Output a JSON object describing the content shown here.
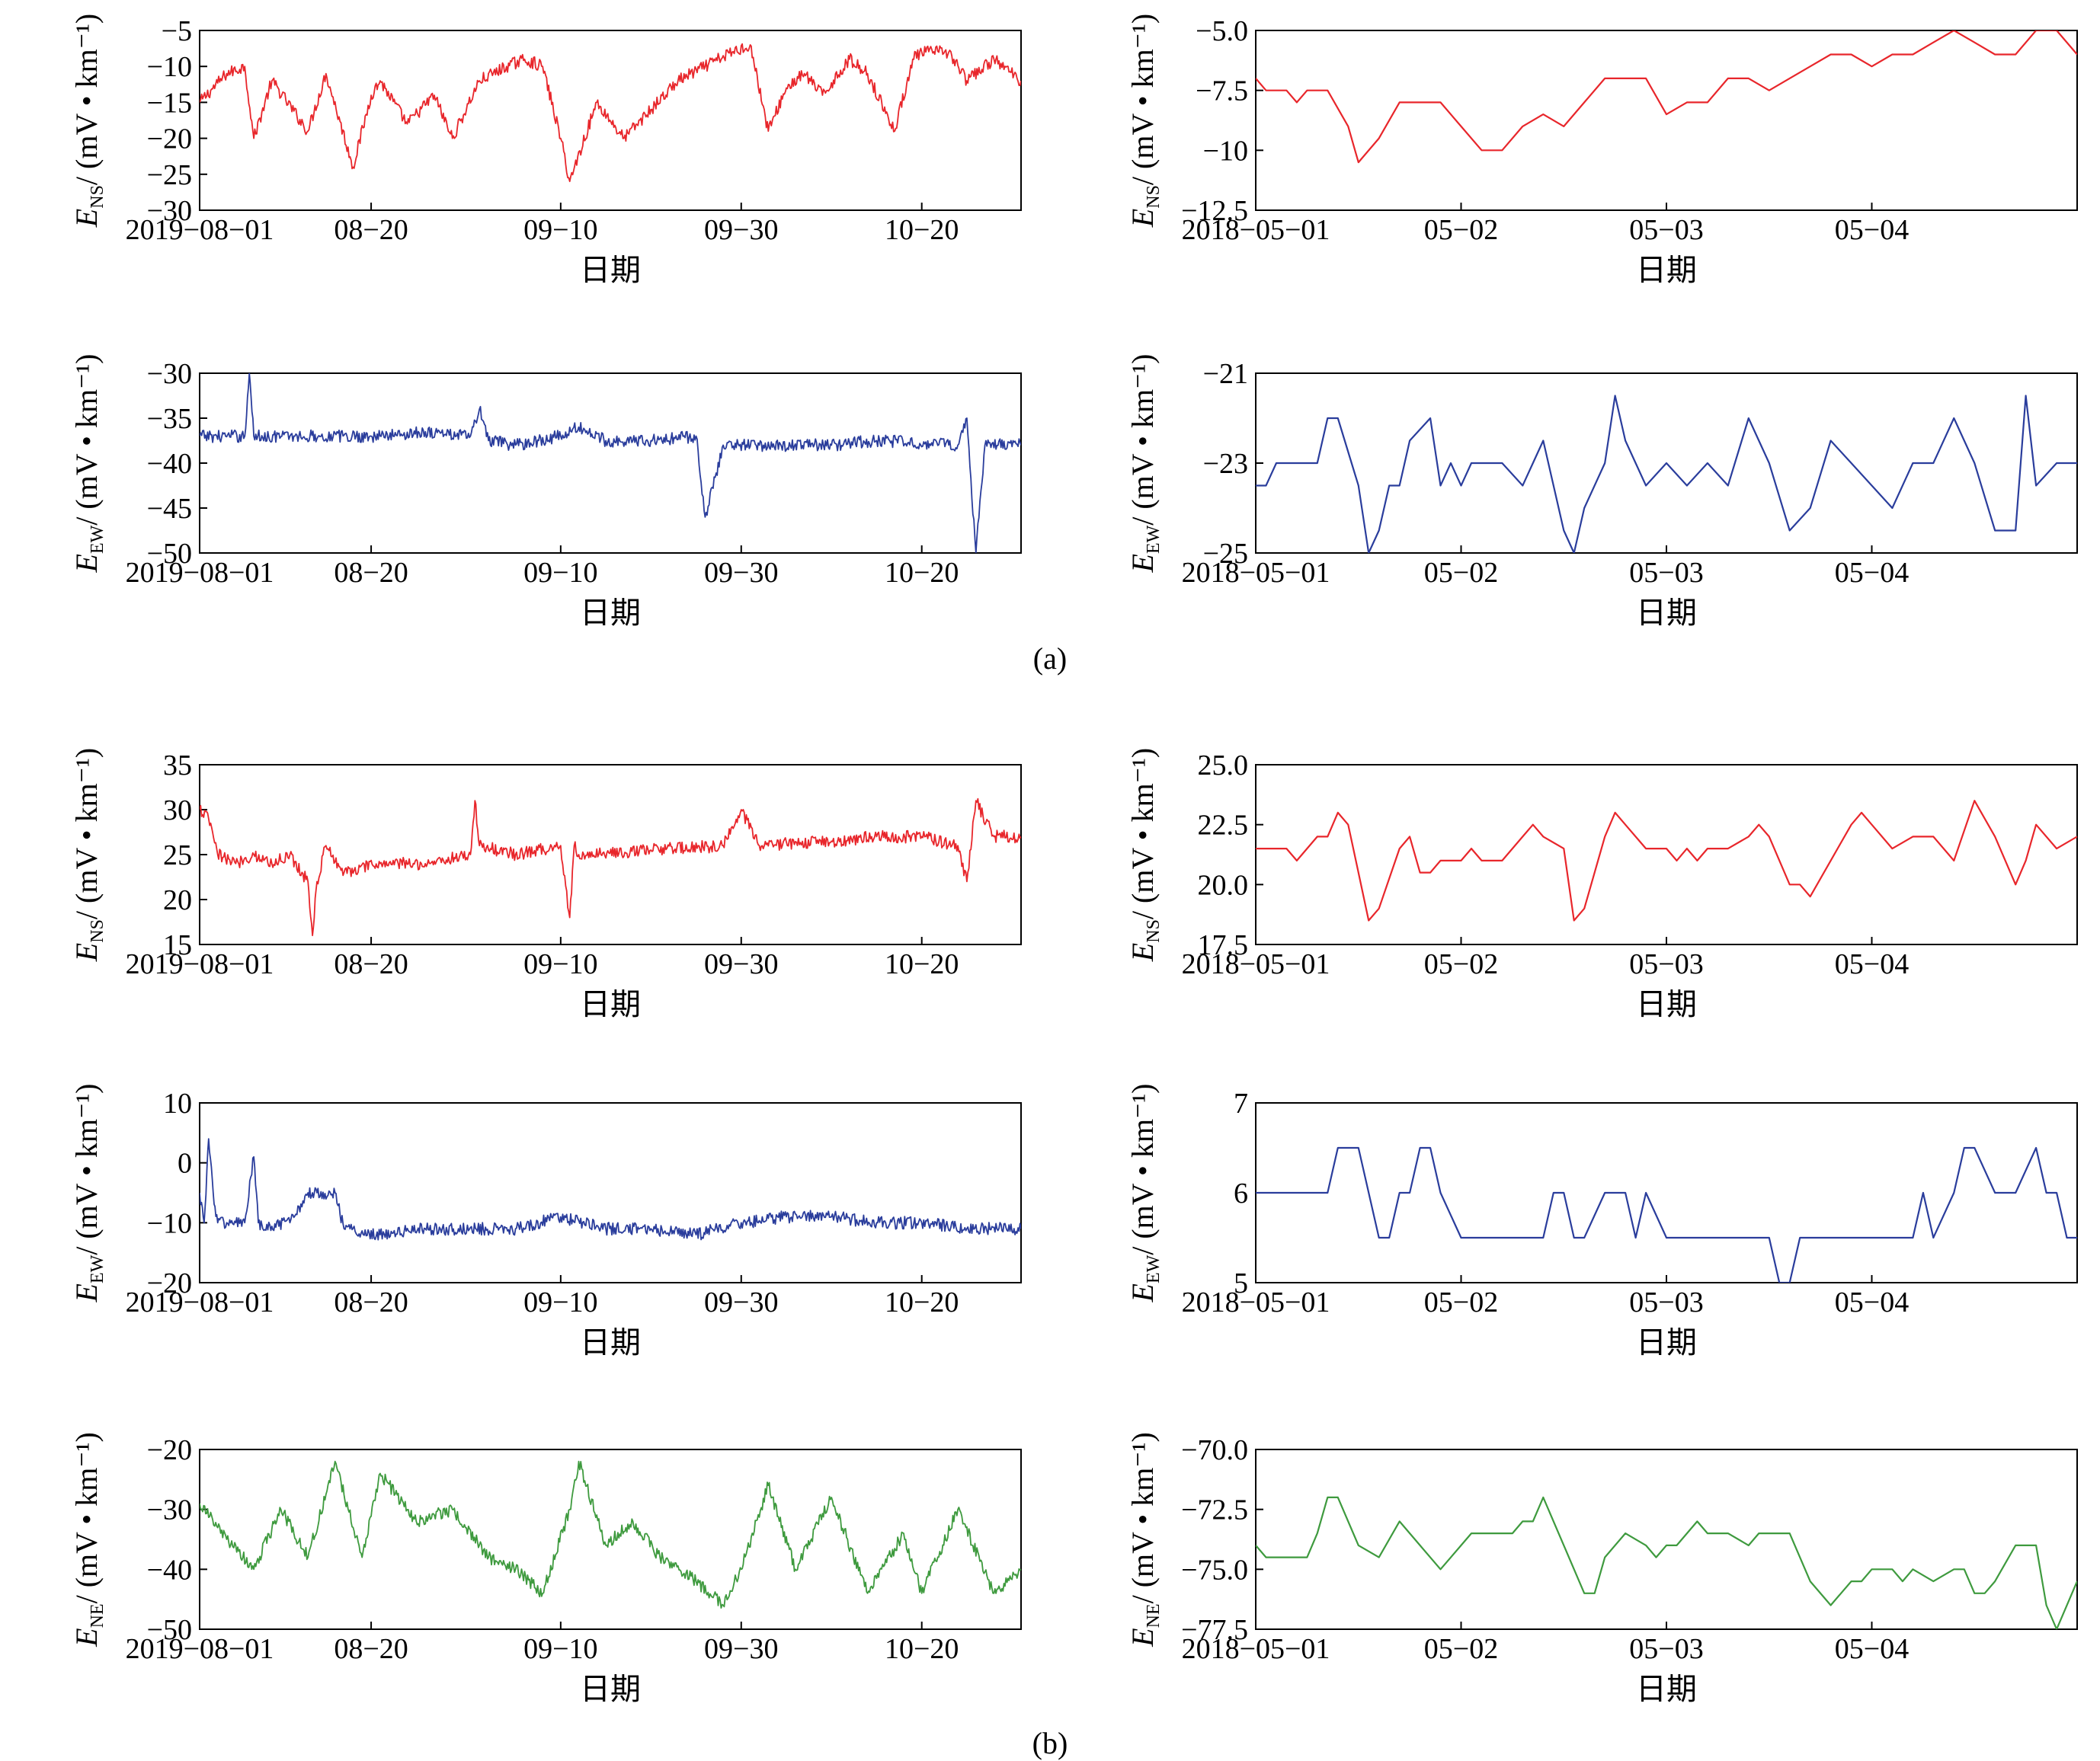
{
  "figure": {
    "caption_a": "(a)",
    "caption_b": "(b)"
  },
  "chart_data": [
    {
      "type": "line",
      "panel": "a",
      "color": "#e8262b",
      "ylabel_main": "E",
      "ylabel_sub": "NS",
      "ylabel_unit": "/ (mV • km⁻¹)",
      "xlabel": "日期",
      "x_ticks": [
        "2019-08-01",
        "08-20",
        "09-10",
        "09-30",
        "10-20"
      ],
      "x_tick_pos": [
        0,
        19,
        40,
        60,
        80
      ],
      "xlim": [
        0,
        91
      ],
      "y_ticks": [
        "-5",
        "-10",
        "-15",
        "-20",
        "-25",
        "-30"
      ],
      "ylim": [
        -30,
        -5
      ],
      "x": [
        0,
        3,
        5,
        6,
        8,
        12,
        14,
        17,
        19,
        20,
        23,
        26,
        28,
        31,
        34,
        36,
        38,
        40,
        41,
        44,
        47,
        50,
        53,
        56,
        59,
        61,
        63,
        65,
        67,
        69,
        72,
        74,
        77,
        79,
        80,
        83,
        85,
        88,
        91
      ],
      "y": [
        -15,
        -11,
        -10,
        -20,
        -12,
        -19,
        -11,
        -24,
        -14,
        -12,
        -18,
        -14,
        -20,
        -12,
        -10,
        -9,
        -10,
        -20,
        -26,
        -15,
        -20,
        -16,
        -12,
        -10,
        -8,
        -7,
        -19,
        -13,
        -11,
        -14,
        -9,
        -11,
        -19,
        -9,
        -8,
        -8,
        -12,
        -9,
        -12
      ]
    },
    {
      "type": "line",
      "panel": "a",
      "color": "#e8262b",
      "ylabel_main": "E",
      "ylabel_sub": "NS",
      "ylabel_unit": "/ (mV • km⁻¹)",
      "xlabel": "日期",
      "x_ticks": [
        "2018-05-01",
        "05-02",
        "05-03",
        "05-04"
      ],
      "x_tick_pos": [
        0,
        1,
        2,
        3
      ],
      "xlim": [
        0,
        4
      ],
      "y_ticks": [
        "-5.0",
        "-7.5",
        "-10",
        "-12.5"
      ],
      "ylim": [
        -12.5,
        -5
      ],
      "x": [
        0,
        0.05,
        0.15,
        0.2,
        0.25,
        0.35,
        0.45,
        0.5,
        0.6,
        0.7,
        0.8,
        0.9,
        1.0,
        1.1,
        1.2,
        1.3,
        1.4,
        1.5,
        1.6,
        1.7,
        1.8,
        1.9,
        2.0,
        2.1,
        2.2,
        2.3,
        2.4,
        2.5,
        2.6,
        2.7,
        2.8,
        2.9,
        3.0,
        3.1,
        3.2,
        3.3,
        3.4,
        3.5,
        3.6,
        3.7,
        3.8,
        3.9,
        4.0
      ],
      "y": [
        -7,
        -7.5,
        -7.5,
        -8,
        -7.5,
        -7.5,
        -9,
        -10.5,
        -9.5,
        -8,
        -8,
        -8,
        -9,
        -10,
        -10,
        -9,
        -8.5,
        -9,
        -8,
        -7,
        -7,
        -7,
        -8.5,
        -8,
        -8,
        -7,
        -7,
        -7.5,
        -7,
        -6.5,
        -6,
        -6,
        -6.5,
        -6,
        -6,
        -5.5,
        -5,
        -5.5,
        -6,
        -6,
        -5,
        -5,
        -6
      ]
    },
    {
      "type": "line",
      "panel": "a",
      "color": "#2a3d9c",
      "ylabel_main": "E",
      "ylabel_sub": "EW",
      "ylabel_unit": "/ (mV • km⁻¹)",
      "xlabel": "日期",
      "x_ticks": [
        "2019-08-01",
        "08-20",
        "09-10",
        "09-30",
        "10-20"
      ],
      "x_tick_pos": [
        0,
        19,
        40,
        60,
        80
      ],
      "xlim": [
        0,
        91
      ],
      "y_ticks": [
        "-30",
        "-35",
        "-40",
        "-45",
        "-50"
      ],
      "ylim": [
        -50,
        -30
      ],
      "x": [
        0,
        5,
        5.5,
        6,
        10,
        20,
        25,
        30,
        31,
        32,
        35,
        40,
        42,
        45,
        50,
        55,
        56,
        58,
        62,
        70,
        75,
        84,
        85,
        86,
        87,
        91
      ],
      "y": [
        -37,
        -37,
        -30,
        -37,
        -37,
        -37,
        -36.5,
        -37,
        -34,
        -37.5,
        -38,
        -37,
        -36,
        -37.5,
        -37.5,
        -37,
        -46,
        -38,
        -38,
        -38,
        -37.5,
        -38,
        -35,
        -50,
        -38,
        -38
      ]
    },
    {
      "type": "line",
      "panel": "a",
      "color": "#2a3d9c",
      "ylabel_main": "E",
      "ylabel_sub": "EW",
      "ylabel_unit": "/ (mV • km⁻¹)",
      "xlabel": "日期",
      "x_ticks": [
        "2018-05-01",
        "05-02",
        "05-03",
        "05-04"
      ],
      "x_tick_pos": [
        0,
        1,
        2,
        3
      ],
      "xlim": [
        0,
        4
      ],
      "y_ticks": [
        "-21",
        "-23",
        "-25"
      ],
      "ylim": [
        -25,
        -21
      ],
      "x": [
        0,
        0.05,
        0.1,
        0.3,
        0.35,
        0.4,
        0.5,
        0.55,
        0.6,
        0.65,
        0.7,
        0.75,
        0.85,
        0.9,
        0.95,
        1.0,
        1.05,
        1.1,
        1.2,
        1.3,
        1.35,
        1.4,
        1.5,
        1.55,
        1.6,
        1.7,
        1.75,
        1.8,
        1.85,
        1.9,
        2.0,
        2.1,
        2.2,
        2.3,
        2.4,
        2.5,
        2.6,
        2.7,
        2.8,
        2.9,
        3.0,
        3.1,
        3.2,
        3.3,
        3.4,
        3.5,
        3.6,
        3.7,
        3.75,
        3.8,
        3.9,
        4.0
      ],
      "y": [
        -23.5,
        -23.5,
        -23,
        -23,
        -22,
        -22,
        -23.5,
        -25,
        -24.5,
        -23.5,
        -23.5,
        -22.5,
        -22,
        -23.5,
        -23,
        -23.5,
        -23,
        -23,
        -23,
        -23.5,
        -23,
        -22.5,
        -24.5,
        -25,
        -24,
        -23,
        -21.5,
        -22.5,
        -23,
        -23.5,
        -23,
        -23.5,
        -23,
        -23.5,
        -22,
        -23,
        -24.5,
        -24,
        -22.5,
        -23,
        -23.5,
        -24,
        -23,
        -23,
        -22,
        -23,
        -24.5,
        -24.5,
        -21.5,
        -23.5,
        -23,
        -23
      ]
    },
    {
      "type": "line",
      "panel": "b",
      "color": "#e8262b",
      "ylabel_main": "E",
      "ylabel_sub": "NS",
      "ylabel_unit": "/ (mV • km⁻¹)",
      "xlabel": "日期",
      "x_ticks": [
        "2019-08-01",
        "08-20",
        "09-10",
        "09-30",
        "10-20"
      ],
      "x_tick_pos": [
        0,
        19,
        40,
        60,
        80
      ],
      "xlim": [
        0,
        91
      ],
      "y_ticks": [
        "35",
        "30",
        "25",
        "20",
        "15"
      ],
      "ylim": [
        15,
        35
      ],
      "x": [
        0,
        1,
        2,
        4,
        6,
        8,
        10,
        12,
        12.5,
        13,
        14,
        16,
        20,
        25,
        30,
        30.5,
        31,
        35,
        40,
        41,
        41.5,
        42,
        50,
        58,
        60,
        62,
        70,
        75,
        80,
        84,
        85,
        86,
        88,
        91
      ],
      "y": [
        30,
        29,
        25,
        24,
        25,
        24,
        25,
        22,
        16,
        22,
        26,
        23,
        24,
        24,
        25,
        31,
        26,
        25,
        26,
        18,
        26,
        25,
        25.5,
        26,
        30,
        26,
        26.5,
        27,
        27,
        26,
        22,
        31,
        27,
        27
      ]
    },
    {
      "type": "line",
      "panel": "b",
      "color": "#e8262b",
      "ylabel_main": "E",
      "ylabel_sub": "NS",
      "ylabel_unit": "/ (mV • km⁻¹)",
      "xlabel": "日期",
      "x_ticks": [
        "2018-05-01",
        "05-02",
        "05-03",
        "05-04"
      ],
      "x_tick_pos": [
        0,
        1,
        2,
        3
      ],
      "xlim": [
        0,
        4
      ],
      "y_ticks": [
        "25.0",
        "22.5",
        "20.0",
        "17.5"
      ],
      "ylim": [
        17.5,
        25
      ],
      "x": [
        0,
        0.15,
        0.2,
        0.3,
        0.35,
        0.4,
        0.45,
        0.5,
        0.55,
        0.6,
        0.7,
        0.75,
        0.8,
        0.85,
        0.9,
        1.0,
        1.05,
        1.1,
        1.2,
        1.3,
        1.35,
        1.4,
        1.5,
        1.55,
        1.6,
        1.7,
        1.75,
        1.8,
        1.9,
        2.0,
        2.05,
        2.1,
        2.15,
        2.2,
        2.3,
        2.4,
        2.45,
        2.5,
        2.6,
        2.65,
        2.7,
        2.8,
        2.9,
        2.95,
        3.0,
        3.1,
        3.2,
        3.25,
        3.3,
        3.4,
        3.5,
        3.6,
        3.7,
        3.75,
        3.8,
        3.9,
        4.0
      ],
      "y": [
        21.5,
        21.5,
        21,
        22,
        22,
        23,
        22.5,
        20.5,
        18.5,
        19,
        21.5,
        22,
        20.5,
        20.5,
        21,
        21,
        21.5,
        21,
        21,
        22,
        22.5,
        22,
        21.5,
        18.5,
        19,
        22,
        23,
        22.5,
        21.5,
        21.5,
        21,
        21.5,
        21,
        21.5,
        21.5,
        22,
        22.5,
        22,
        20,
        20,
        19.5,
        21,
        22.5,
        23,
        22.5,
        21.5,
        22,
        22,
        22,
        21,
        23.5,
        22,
        20,
        21,
        22.5,
        21.5,
        22
      ]
    },
    {
      "type": "line",
      "panel": "b",
      "color": "#2a3d9c",
      "ylabel_main": "E",
      "ylabel_sub": "EW",
      "ylabel_unit": "/ (mV • km⁻¹)",
      "xlabel": "日期",
      "x_ticks": [
        "2019-08-01",
        "08-20",
        "09-10",
        "09-30",
        "10-20"
      ],
      "x_tick_pos": [
        0,
        19,
        40,
        60,
        80
      ],
      "xlim": [
        0,
        91
      ],
      "y_ticks": [
        "10",
        "0",
        "-10",
        "-20"
      ],
      "ylim": [
        -20,
        10
      ],
      "x": [
        0,
        0.5,
        1,
        1.5,
        2,
        3,
        5,
        6,
        6.5,
        7,
        10,
        12,
        12.5,
        13,
        15,
        16,
        20,
        25,
        35,
        40,
        45,
        50,
        55,
        60,
        65,
        70,
        75,
        80,
        85,
        91
      ],
      "y": [
        -5,
        -10,
        4,
        -5,
        -10,
        -10,
        -10,
        1,
        -10,
        -11,
        -10,
        -5,
        -5,
        -5,
        -5,
        -11,
        -12,
        -11,
        -11,
        -9,
        -11,
        -11,
        -12,
        -10,
        -9,
        -9,
        -10,
        -10,
        -11,
        -11
      ]
    },
    {
      "type": "line",
      "panel": "b",
      "color": "#2a3d9c",
      "ylabel_main": "E",
      "ylabel_sub": "EW",
      "ylabel_unit": "/ (mV • km⁻¹)",
      "xlabel": "日期",
      "x_ticks": [
        "2018-05-01",
        "05-02",
        "05-03",
        "05-04"
      ],
      "x_tick_pos": [
        0,
        1,
        2,
        3
      ],
      "xlim": [
        0,
        4
      ],
      "y_ticks": [
        "7",
        "6",
        "5"
      ],
      "ylim": [
        5,
        7
      ],
      "x": [
        0,
        0.35,
        0.4,
        0.5,
        0.6,
        0.65,
        0.7,
        0.75,
        0.8,
        0.85,
        0.9,
        1.0,
        1.4,
        1.45,
        1.5,
        1.55,
        1.6,
        1.7,
        1.8,
        1.85,
        1.9,
        2.0,
        2.5,
        2.55,
        2.6,
        2.65,
        3.0,
        3.2,
        3.25,
        3.3,
        3.4,
        3.45,
        3.5,
        3.6,
        3.7,
        3.8,
        3.85,
        3.9,
        3.95,
        4.0
      ],
      "y": [
        6,
        6,
        6.5,
        6.5,
        5.5,
        5.5,
        6,
        6,
        6.5,
        6.5,
        6,
        5.5,
        5.5,
        6,
        6,
        5.5,
        5.5,
        6,
        6,
        5.5,
        6,
        5.5,
        5.5,
        5,
        5,
        5.5,
        5.5,
        5.5,
        6,
        5.5,
        6,
        6.5,
        6.5,
        6,
        6,
        6.5,
        6,
        6,
        5.5,
        5.5
      ]
    },
    {
      "type": "line",
      "panel": "b",
      "color": "#3e9a3e",
      "ylabel_main": "E",
      "ylabel_sub": "NE",
      "ylabel_unit": "/ (mV • km⁻¹)",
      "xlabel": "日期",
      "x_ticks": [
        "2019-08-01",
        "08-20",
        "09-10",
        "09-30",
        "10-20"
      ],
      "x_tick_pos": [
        0,
        19,
        40,
        60,
        80
      ],
      "xlim": [
        0,
        91
      ],
      "y_ticks": [
        "-20",
        "-30",
        "-40",
        "-50"
      ],
      "ylim": [
        -50,
        -20
      ],
      "x": [
        0,
        3,
        6,
        9,
        12,
        15,
        18,
        20,
        24,
        28,
        32,
        35,
        38,
        41,
        42,
        45,
        48,
        51,
        55,
        58,
        60,
        63,
        66,
        70,
        74,
        78,
        80,
        84,
        88,
        91
      ],
      "y": [
        -29,
        -35,
        -40,
        -30,
        -38,
        -22,
        -38,
        -24,
        -32,
        -30,
        -38,
        -40,
        -44,
        -30,
        -22,
        -36,
        -32,
        -38,
        -42,
        -46,
        -40,
        -26,
        -40,
        -28,
        -44,
        -34,
        -44,
        -30,
        -44,
        -40
      ]
    },
    {
      "type": "line",
      "panel": "b",
      "color": "#3e9a3e",
      "ylabel_main": "E",
      "ylabel_sub": "NE",
      "ylabel_unit": "/ (mV • km⁻¹)",
      "xlabel": "日期",
      "x_ticks": [
        "2018-05-01",
        "05-02",
        "05-03",
        "05-04"
      ],
      "x_tick_pos": [
        0,
        1,
        2,
        3
      ],
      "xlim": [
        0,
        4
      ],
      "y_ticks": [
        "-70.0",
        "-72.5",
        "-75.0",
        "-77.5"
      ],
      "ylim": [
        -77.5,
        -70
      ],
      "x": [
        0,
        0.05,
        0.25,
        0.3,
        0.35,
        0.4,
        0.45,
        0.5,
        0.6,
        0.7,
        0.8,
        0.9,
        1.0,
        1.05,
        1.2,
        1.25,
        1.3,
        1.35,
        1.4,
        1.5,
        1.6,
        1.65,
        1.7,
        1.8,
        1.9,
        1.95,
        2.0,
        2.05,
        2.15,
        2.2,
        2.3,
        2.4,
        2.45,
        2.5,
        2.6,
        2.7,
        2.8,
        2.85,
        2.9,
        2.95,
        3.0,
        3.05,
        3.1,
        3.15,
        3.2,
        3.3,
        3.4,
        3.45,
        3.5,
        3.55,
        3.6,
        3.7,
        3.8,
        3.85,
        3.9,
        4.0
      ],
      "y": [
        -74,
        -74.5,
        -74.5,
        -73.5,
        -72,
        -72,
        -73,
        -74,
        -74.5,
        -73,
        -74,
        -75,
        -74,
        -73.5,
        -73.5,
        -73.5,
        -73,
        -73,
        -72,
        -74,
        -76,
        -76,
        -74.5,
        -73.5,
        -74,
        -74.5,
        -74,
        -74,
        -73,
        -73.5,
        -73.5,
        -74,
        -73.5,
        -73.5,
        -73.5,
        -75.5,
        -76.5,
        -76,
        -75.5,
        -75.5,
        -75,
        -75,
        -75,
        -75.5,
        -75,
        -75.5,
        -75,
        -75,
        -76,
        -76,
        -75.5,
        -74,
        -74,
        -76.5,
        -77.5,
        -75.5
      ]
    }
  ]
}
